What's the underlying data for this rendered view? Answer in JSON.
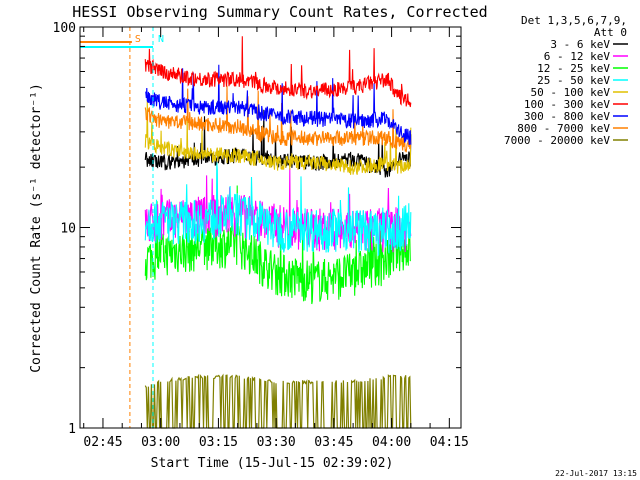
{
  "chart_data": {
    "type": "line",
    "title": "HESSI Observing Summary Count Rates, Corrected",
    "xlabel": "Start Time (15-Jul-15 02:39:02)",
    "ylabel": "Corrected Count Rate (s⁻¹ detector⁻¹)",
    "y_scale": "log",
    "ylim": [
      1,
      100
    ],
    "xlim_minutes_after_start": [
      0,
      99
    ],
    "x_tick_labels": [
      "02:45",
      "03:00",
      "03:15",
      "03:30",
      "03:45",
      "04:00",
      "04:15"
    ],
    "y_tick_labels": [
      "1",
      "10",
      "100"
    ],
    "legend": {
      "placement": "right",
      "header": [
        "Det 1,3,5,6,7,9,",
        "Att 0"
      ],
      "entries": [
        {
          "label": "3 - 6 keV",
          "color": "#000000"
        },
        {
          "label": "6 - 12 keV",
          "color": "#ff00ff"
        },
        {
          "label": "12 - 25 keV",
          "color": "#00ff00"
        },
        {
          "label": "25 - 50 keV",
          "color": "#00ffff"
        },
        {
          "label": "50 - 100 keV",
          "color": "#e0c000"
        },
        {
          "label": "100 - 300 keV",
          "color": "#ff0000"
        },
        {
          "label": "300 - 800 keV",
          "color": "#0000ff"
        },
        {
          "label": "800 - 7000 keV",
          "color": "#ff8000"
        },
        {
          "label": "7000 - 20000 keV",
          "color": "#808000"
        }
      ]
    },
    "x": [
      "02:56",
      "03:00",
      "03:10",
      "03:20",
      "03:30",
      "03:40",
      "03:50",
      "03:59",
      "04:02",
      "04:05"
    ],
    "series": [
      {
        "name": "100 - 300 keV",
        "color": "#ff0000",
        "values": [
          65,
          60,
          55,
          55,
          50,
          48,
          50,
          55,
          45,
          42
        ]
      },
      {
        "name": "300 - 800 keV",
        "color": "#0000ff",
        "values": [
          46,
          42,
          40,
          40,
          36,
          35,
          34,
          35,
          30,
          28
        ]
      },
      {
        "name": "800 - 7000 keV",
        "color": "#ff8000",
        "values": [
          37,
          34,
          33,
          32,
          28,
          28,
          28,
          28,
          26,
          26
        ]
      },
      {
        "name": "50 - 100 keV",
        "color": "#e0c000",
        "values": [
          27,
          25,
          23,
          23,
          21,
          21,
          20,
          21,
          20,
          21
        ]
      },
      {
        "name": "3 - 6 keV",
        "color": "#000000",
        "values": [
          22,
          21,
          22,
          23,
          22,
          21,
          22,
          19,
          22,
          22
        ]
      },
      {
        "name": "25 - 50 keV",
        "color": "#00ffff",
        "values": [
          11,
          11,
          11,
          12,
          10,
          10,
          10,
          9.5,
          9.5,
          11.5
        ]
      },
      {
        "name": "6 - 12 keV",
        "color": "#ff00ff",
        "values": [
          10.5,
          11,
          11.5,
          12,
          10.5,
          10,
          10,
          10,
          10,
          10
        ]
      },
      {
        "name": "12 - 25 keV",
        "color": "#00ff00",
        "values": [
          7,
          7.5,
          8,
          8.5,
          6,
          5.5,
          6,
          7,
          8,
          8
        ]
      },
      {
        "name": "7000 - 20000 keV",
        "color": "#808000",
        "values": [
          1.6,
          1.7,
          1.8,
          1.8,
          1.7,
          1.7,
          1.7,
          1.8,
          1.8,
          1.8
        ]
      }
    ],
    "annotations": [
      {
        "text": "S",
        "color": "#ff8000",
        "x": "02:52"
      },
      {
        "text": "N",
        "color": "#00ffff",
        "x": "02:58"
      }
    ],
    "footer_stamp": "22-Jul-2017 13:15"
  }
}
